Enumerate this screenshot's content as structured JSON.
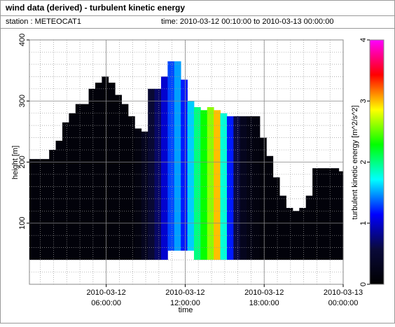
{
  "header": {
    "title": "wind data (derived) - turbulent kinetic energy",
    "station": "station : METEOCAT1",
    "period": "time: 2010-03-12 00:10:00 to 2010-03-13 00:00:00"
  },
  "chart_data": {
    "type": "heatmap",
    "xlabel": "time",
    "ylabel": "height [m]",
    "colorbar_label": "turbulent kinetic energy [m^2/s^2]",
    "xlim": [
      "2010-03-12 00:10:00",
      "2010-03-13 00:00:00"
    ],
    "xticks": [
      "2010-03-12 06:00:00",
      "2010-03-12 12:00:00",
      "2010-03-12 18:00:00",
      "2010-03-13 00:00:00"
    ],
    "ylim": [
      0,
      400
    ],
    "yticks": [
      100,
      200,
      300,
      400
    ],
    "y_minor_ticks": [
      20,
      40,
      60,
      80,
      120,
      140,
      160,
      180,
      220,
      240,
      260,
      280,
      320,
      340,
      360,
      380
    ],
    "clim": [
      0,
      4
    ],
    "cticks": [
      0,
      1,
      2,
      3,
      4
    ],
    "colormap": [
      "#000000",
      "#0a0a3a",
      "#0000ff",
      "#00ffff",
      "#00ff00",
      "#ffff00",
      "#ff0000",
      "#ff00ff"
    ],
    "grid": true,
    "x": [
      "2010-03-12 00:10:00",
      "2010-03-12 00:40:00",
      "2010-03-12 01:10:00",
      "2010-03-12 01:40:00",
      "2010-03-12 02:10:00",
      "2010-03-12 02:40:00",
      "2010-03-12 03:10:00",
      "2010-03-12 03:40:00",
      "2010-03-12 04:10:00",
      "2010-03-12 04:40:00",
      "2010-03-12 05:10:00",
      "2010-03-12 05:40:00",
      "2010-03-12 06:10:00",
      "2010-03-12 06:40:00",
      "2010-03-12 07:10:00",
      "2010-03-12 07:40:00",
      "2010-03-12 08:10:00",
      "2010-03-12 08:40:00",
      "2010-03-12 09:10:00",
      "2010-03-12 09:40:00",
      "2010-03-12 10:10:00",
      "2010-03-12 10:40:00",
      "2010-03-12 11:10:00",
      "2010-03-12 11:40:00",
      "2010-03-12 12:10:00",
      "2010-03-12 12:40:00",
      "2010-03-12 13:10:00",
      "2010-03-12 13:40:00",
      "2010-03-12 14:10:00",
      "2010-03-12 14:40:00",
      "2010-03-12 15:10:00",
      "2010-03-12 15:40:00",
      "2010-03-12 16:10:00",
      "2010-03-12 16:40:00",
      "2010-03-12 17:10:00",
      "2010-03-12 17:40:00",
      "2010-03-12 18:10:00",
      "2010-03-12 18:40:00",
      "2010-03-12 19:10:00",
      "2010-03-12 19:40:00",
      "2010-03-12 20:10:00",
      "2010-03-12 20:40:00",
      "2010-03-12 21:10:00",
      "2010-03-12 21:40:00",
      "2010-03-12 22:10:00",
      "2010-03-12 22:40:00",
      "2010-03-12 23:10:00",
      "2010-03-12 23:40:00"
    ],
    "bottom": [
      40,
      40,
      40,
      40,
      40,
      40,
      40,
      40,
      40,
      40,
      40,
      40,
      40,
      40,
      40,
      40,
      40,
      40,
      40,
      40,
      40,
      55,
      55,
      55,
      55,
      40,
      40,
      40,
      40,
      40,
      40,
      40,
      40,
      40,
      40,
      40,
      40,
      40,
      40,
      40,
      40,
      40,
      40,
      40,
      40,
      40,
      40,
      40
    ],
    "top": [
      205,
      205,
      205,
      220,
      235,
      265,
      280,
      295,
      295,
      320,
      330,
      340,
      330,
      310,
      295,
      275,
      255,
      250,
      320,
      320,
      340,
      365,
      365,
      335,
      300,
      290,
      285,
      290,
      285,
      280,
      275,
      275,
      275,
      275,
      275,
      240,
      210,
      175,
      145,
      125,
      120,
      125,
      145,
      190,
      190,
      190,
      190,
      185
    ],
    "values": [
      0.1,
      0.1,
      0.1,
      0.1,
      0.1,
      0.1,
      0.1,
      0.1,
      0.1,
      0.1,
      0.1,
      0.1,
      0.1,
      0.1,
      0.1,
      0.1,
      0.15,
      0.3,
      0.5,
      0.7,
      1.0,
      1.3,
      1.5,
      1.2,
      1.6,
      2.0,
      2.3,
      2.6,
      3.0,
      1.8,
      1.2,
      0.6,
      0.3,
      0.2,
      0.15,
      0.1,
      0.1,
      0.1,
      0.1,
      0.1,
      0.1,
      0.1,
      0.1,
      0.1,
      0.1,
      0.1,
      0.1,
      0.1
    ]
  }
}
